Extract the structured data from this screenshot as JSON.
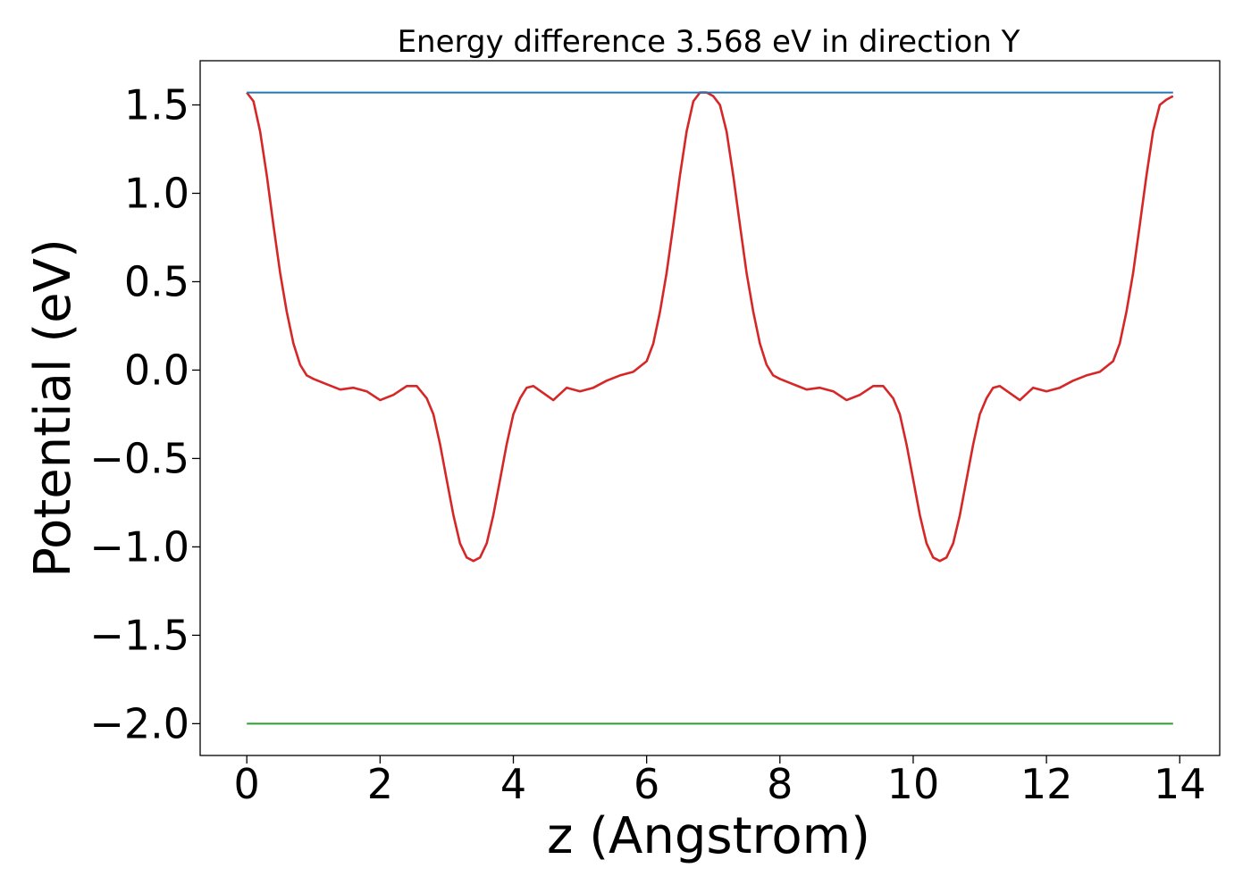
{
  "chart_data": {
    "type": "line",
    "title": "Energy difference 3.568 eV in direction Y",
    "xlabel": "z (Angstrom)",
    "ylabel": "Potential (eV)",
    "xlim": [
      -0.7,
      14.6
    ],
    "ylim": [
      -2.18,
      1.75
    ],
    "x_ticks": [
      0,
      2,
      4,
      6,
      8,
      10,
      12,
      14
    ],
    "x_tick_labels": [
      "0",
      "2",
      "4",
      "6",
      "8",
      "10",
      "12",
      "14"
    ],
    "y_ticks": [
      1.5,
      1.0,
      0.5,
      0.0,
      -0.5,
      -1.0,
      -1.5,
      -2.0
    ],
    "y_tick_labels": [
      "1.5",
      "1.0",
      "0.5",
      "0.0",
      "−0.5",
      "−1.0",
      "−1.5",
      "−2.0"
    ],
    "grid": false,
    "series": [
      {
        "color": "#d62728",
        "x": [
          0.0,
          0.1,
          0.2,
          0.3,
          0.4,
          0.5,
          0.6,
          0.7,
          0.8,
          0.9,
          1.0,
          1.2,
          1.4,
          1.6,
          1.8,
          2.0,
          2.2,
          2.4,
          2.55,
          2.7,
          2.8,
          2.9,
          3.0,
          3.1,
          3.2,
          3.3,
          3.4,
          3.5,
          3.6,
          3.7,
          3.8,
          3.9,
          4.0,
          4.1,
          4.2,
          4.3,
          4.45,
          4.6,
          4.8,
          5.0,
          5.2,
          5.4,
          5.6,
          5.8,
          6.0,
          6.1,
          6.2,
          6.3,
          6.4,
          6.5,
          6.6,
          6.7,
          6.8,
          6.9,
          6.95,
          7.0,
          7.1,
          7.2,
          7.3,
          7.4,
          7.5,
          7.6,
          7.7,
          7.8,
          7.9,
          8.0,
          8.2,
          8.4,
          8.6,
          8.8,
          9.0,
          9.2,
          9.4,
          9.55,
          9.7,
          9.8,
          9.9,
          10.0,
          10.1,
          10.2,
          10.3,
          10.4,
          10.5,
          10.6,
          10.7,
          10.8,
          10.9,
          11.0,
          11.1,
          11.2,
          11.3,
          11.45,
          11.6,
          11.8,
          12.0,
          12.2,
          12.4,
          12.6,
          12.8,
          13.0,
          13.1,
          13.2,
          13.3,
          13.4,
          13.5,
          13.6,
          13.7,
          13.8,
          13.9
        ],
        "y": [
          1.57,
          1.52,
          1.35,
          1.1,
          0.82,
          0.55,
          0.33,
          0.15,
          0.03,
          -0.03,
          -0.05,
          -0.08,
          -0.11,
          -0.1,
          -0.12,
          -0.17,
          -0.14,
          -0.09,
          -0.09,
          -0.16,
          -0.25,
          -0.42,
          -0.62,
          -0.82,
          -0.98,
          -1.06,
          -1.08,
          -1.06,
          -0.98,
          -0.82,
          -0.62,
          -0.42,
          -0.25,
          -0.16,
          -0.1,
          -0.09,
          -0.13,
          -0.17,
          -0.1,
          -0.12,
          -0.1,
          -0.06,
          -0.03,
          -0.01,
          0.05,
          0.15,
          0.33,
          0.55,
          0.82,
          1.1,
          1.35,
          1.52,
          1.57,
          1.57,
          1.56,
          1.55,
          1.5,
          1.35,
          1.1,
          0.82,
          0.55,
          0.33,
          0.15,
          0.03,
          -0.03,
          -0.05,
          -0.08,
          -0.11,
          -0.1,
          -0.12,
          -0.17,
          -0.14,
          -0.09,
          -0.09,
          -0.16,
          -0.25,
          -0.42,
          -0.62,
          -0.82,
          -0.98,
          -1.06,
          -1.08,
          -1.06,
          -0.98,
          -0.82,
          -0.62,
          -0.42,
          -0.25,
          -0.16,
          -0.1,
          -0.09,
          -0.13,
          -0.17,
          -0.1,
          -0.12,
          -0.1,
          -0.06,
          -0.03,
          -0.01,
          0.05,
          0.15,
          0.33,
          0.55,
          0.82,
          1.1,
          1.35,
          1.5,
          1.53,
          1.55
        ]
      },
      {
        "color": "#1f77b4",
        "x": [
          0.0,
          13.9
        ],
        "y": [
          1.57,
          1.57
        ]
      },
      {
        "color": "#2ca02c",
        "x": [
          0.0,
          13.9
        ],
        "y": [
          -2.0,
          -2.0
        ]
      }
    ]
  }
}
